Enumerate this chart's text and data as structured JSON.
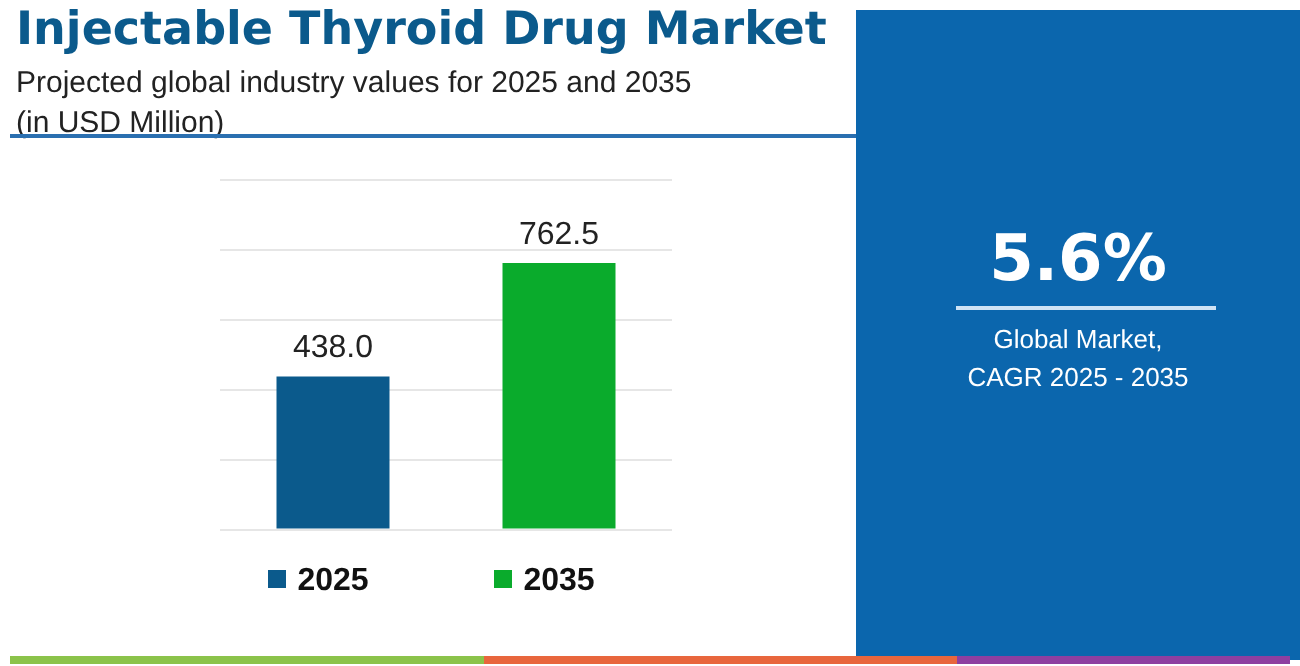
{
  "chart_data": {
    "type": "bar",
    "title": "Injectable Thyroid Drug Market",
    "subtitle": "Projected global industry values for 2025 and 2035\n(in USD Million)",
    "categories": [
      "2025",
      "2035"
    ],
    "values": [
      438.0,
      762.5
    ],
    "colors": [
      "#0b5a8c",
      "#0aab2c"
    ],
    "value_labels": [
      "438.0",
      "762.5"
    ],
    "ylim": [
      0,
      1000
    ],
    "yticks": [
      {
        "value": 0,
        "label": null
      },
      {
        "value": 200,
        "label": null
      },
      {
        "value": 400,
        "label": null
      },
      {
        "value": 600,
        "label": null
      },
      {
        "value": 800,
        "label": null
      },
      {
        "value": 1000,
        "label": null
      }
    ],
    "grid": "y",
    "tick_labels": "x",
    "annotations": [
      "5.6%",
      "Global Market,\nCAGR 2025 - 2035"
    ]
  }
}
